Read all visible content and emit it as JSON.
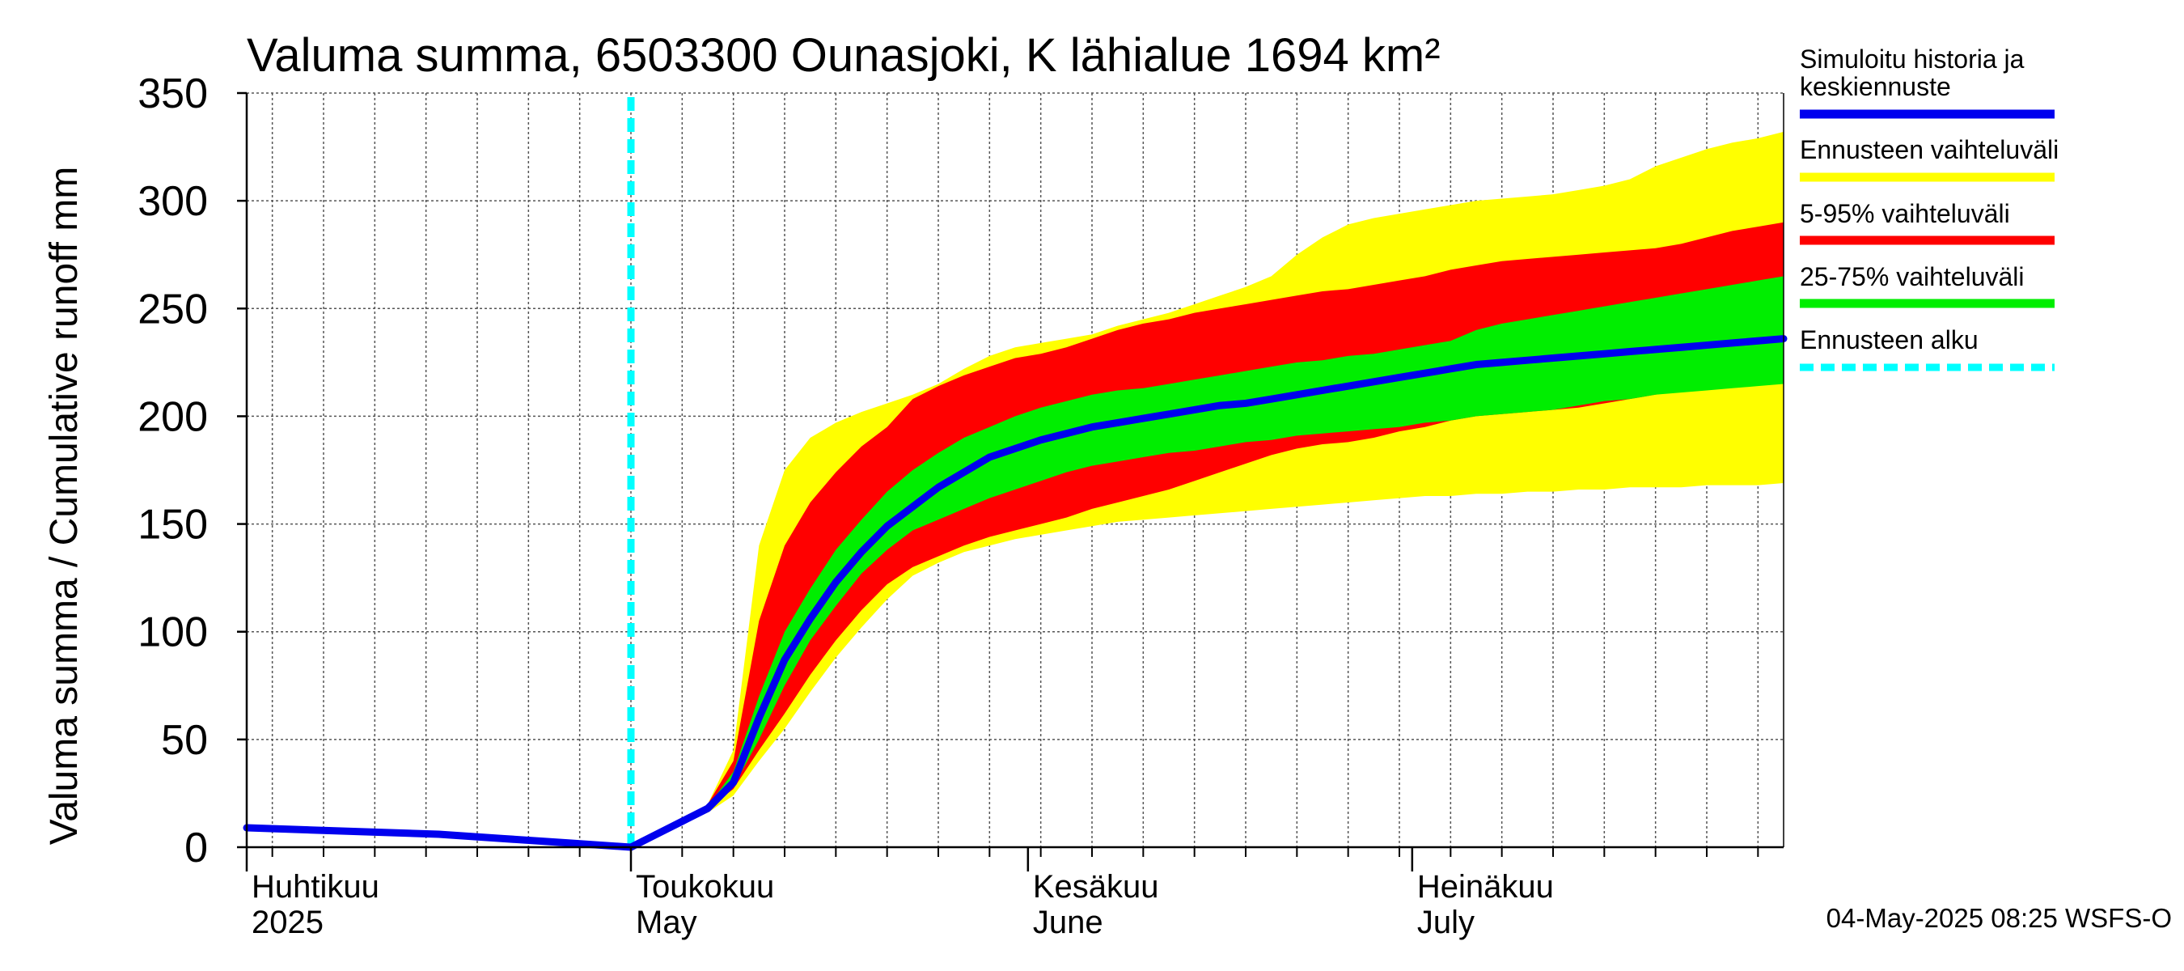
{
  "chart_data": {
    "type": "area",
    "title": "Valuma summa, 6503300 Ounasjoki, K lähialue 1694 km²",
    "ylabel": "Valuma summa / Cumulative runoff    mm",
    "xlabel": "",
    "ylim": [
      0,
      350
    ],
    "yticks": [
      0,
      50,
      100,
      150,
      200,
      250,
      300,
      350
    ],
    "x_range_days": [
      0,
      120
    ],
    "x_unit": "days since 2025-04-01",
    "month_labels": [
      {
        "day": 0,
        "line1": "Huhtikuu",
        "line2": "2025"
      },
      {
        "day": 30,
        "line1": "Toukokuu",
        "line2": "May"
      },
      {
        "day": 61,
        "line1": "Kesäkuu",
        "line2": "June"
      },
      {
        "day": 91,
        "line1": "Heinäkuu",
        "line2": "July"
      }
    ],
    "forecast_start_day": 30,
    "grid": true,
    "legend_position": "right",
    "series": [
      {
        "name": "Ennusteen vaihteluväli",
        "role": "band",
        "color": "#ffff00",
        "x": [
          30,
          32,
          34,
          36,
          38,
          40,
          42,
          44,
          46,
          48,
          50,
          52,
          54,
          56,
          58,
          60,
          62,
          64,
          66,
          68,
          70,
          72,
          74,
          76,
          78,
          80,
          82,
          84,
          86,
          88,
          90,
          92,
          94,
          96,
          98,
          100,
          102,
          104,
          106,
          108,
          110,
          112,
          114,
          116,
          118,
          120
        ],
        "upper": [
          0,
          6,
          12,
          20,
          45,
          140,
          175,
          190,
          197,
          202,
          206,
          210,
          215,
          222,
          228,
          232,
          234,
          236,
          238,
          242,
          245,
          248,
          252,
          256,
          260,
          265,
          275,
          283,
          289,
          292,
          294,
          296,
          298,
          300,
          301,
          302,
          303,
          305,
          307,
          310,
          316,
          320,
          324,
          327,
          329,
          332
        ],
        "lower": [
          0,
          6,
          12,
          16,
          24,
          40,
          55,
          72,
          88,
          102,
          115,
          126,
          132,
          137,
          140,
          143,
          145,
          147,
          149,
          151,
          152,
          153,
          154,
          155,
          156,
          157,
          158,
          159,
          160,
          161,
          162,
          163,
          163,
          164,
          164,
          165,
          165,
          166,
          166,
          167,
          167,
          167,
          168,
          168,
          168,
          169
        ]
      },
      {
        "name": "5-95% vaihteluväli",
        "role": "band",
        "color": "#ff0000",
        "x": [
          30,
          32,
          34,
          36,
          38,
          40,
          42,
          44,
          46,
          48,
          50,
          52,
          54,
          56,
          58,
          60,
          62,
          64,
          66,
          68,
          70,
          72,
          74,
          76,
          78,
          80,
          82,
          84,
          86,
          88,
          90,
          92,
          94,
          96,
          98,
          100,
          102,
          104,
          106,
          108,
          110,
          112,
          114,
          116,
          118,
          120
        ],
        "upper": [
          0,
          6,
          12,
          20,
          40,
          105,
          140,
          160,
          174,
          186,
          195,
          208,
          214,
          219,
          223,
          227,
          229,
          232,
          236,
          240,
          243,
          245,
          248,
          250,
          252,
          254,
          256,
          258,
          259,
          261,
          263,
          265,
          268,
          270,
          272,
          273,
          274,
          275,
          276,
          277,
          278,
          280,
          283,
          286,
          288,
          290
        ],
        "lower": [
          0,
          6,
          12,
          18,
          27,
          45,
          62,
          80,
          96,
          110,
          122,
          130,
          135,
          140,
          144,
          147,
          150,
          153,
          157,
          160,
          163,
          166,
          170,
          174,
          178,
          182,
          185,
          187,
          188,
          190,
          193,
          195,
          198,
          200,
          201,
          202,
          203,
          204,
          206,
          208,
          210,
          212,
          213,
          214,
          215,
          215
        ]
      },
      {
        "name": "25-75% vaihteluväli",
        "role": "band",
        "color": "#00ee00",
        "x": [
          30,
          32,
          34,
          36,
          38,
          40,
          42,
          44,
          46,
          48,
          50,
          52,
          54,
          56,
          58,
          60,
          62,
          64,
          66,
          68,
          70,
          72,
          74,
          76,
          78,
          80,
          82,
          84,
          86,
          88,
          90,
          92,
          94,
          96,
          98,
          100,
          102,
          104,
          106,
          108,
          110,
          112,
          114,
          116,
          118,
          120
        ],
        "upper": [
          0,
          6,
          12,
          19,
          35,
          70,
          100,
          120,
          138,
          152,
          165,
          175,
          183,
          190,
          195,
          200,
          204,
          207,
          210,
          212,
          213,
          215,
          217,
          219,
          221,
          223,
          225,
          226,
          228,
          229,
          231,
          233,
          235,
          240,
          243,
          245,
          247,
          249,
          251,
          253,
          255,
          257,
          259,
          261,
          263,
          265
        ],
        "lower": [
          0,
          6,
          12,
          18,
          28,
          50,
          75,
          96,
          112,
          127,
          138,
          147,
          152,
          157,
          162,
          166,
          170,
          174,
          177,
          179,
          181,
          183,
          184,
          186,
          188,
          189,
          191,
          192,
          193,
          194,
          195,
          197,
          198,
          200,
          201,
          202,
          203,
          205,
          207,
          208,
          210,
          211,
          212,
          213,
          214,
          215
        ]
      },
      {
        "name": "Simuloitu historia ja keskiennuste",
        "role": "line",
        "color": "#0000ee",
        "x": [
          0,
          5,
          10,
          15,
          20,
          25,
          30,
          32,
          34,
          36,
          38,
          40,
          42,
          44,
          46,
          48,
          50,
          52,
          54,
          56,
          58,
          60,
          62,
          64,
          66,
          68,
          70,
          72,
          74,
          76,
          78,
          80,
          82,
          84,
          86,
          88,
          90,
          92,
          94,
          96,
          98,
          100,
          102,
          104,
          106,
          108,
          110,
          112,
          114,
          116,
          118,
          120
        ],
        "values": [
          9,
          8,
          7,
          6,
          4,
          2,
          0,
          6,
          12,
          18,
          30,
          60,
          87,
          106,
          123,
          137,
          149,
          158,
          167,
          174,
          181,
          185,
          189,
          192,
          195,
          197,
          199,
          201,
          203,
          205,
          206,
          208,
          210,
          212,
          214,
          216,
          218,
          220,
          222,
          224,
          225,
          226,
          227,
          228,
          229,
          230,
          231,
          232,
          233,
          234,
          235,
          236
        ]
      },
      {
        "name": "Ennusteen alku",
        "role": "vline",
        "color": "#00ffff"
      }
    ],
    "legend": [
      {
        "label": "Simuloitu historia ja keskiennuste",
        "color": "#0000ee",
        "style": "solid"
      },
      {
        "label": "Ennusteen vaihteluväli",
        "color": "#ffff00",
        "style": "solid"
      },
      {
        "label": "5-95% vaihteluväli",
        "color": "#ff0000",
        "style": "solid"
      },
      {
        "label": "25-75% vaihteluväli",
        "color": "#00ee00",
        "style": "solid"
      },
      {
        "label": "Ennusteen alku",
        "color": "#00ffff",
        "style": "dashed"
      }
    ],
    "footer": "04-May-2025 08:25 WSFS-O"
  },
  "legend_text": {
    "line1_a": "Simuloitu historia ja",
    "line1_b": "keskiennuste",
    "band_full": "Ennusteen vaihteluväli",
    "band_5_95": "5-95% vaihteluväli",
    "band_25_75": "25-75% vaihteluväli",
    "forecast_start": "Ennusteen alku"
  }
}
